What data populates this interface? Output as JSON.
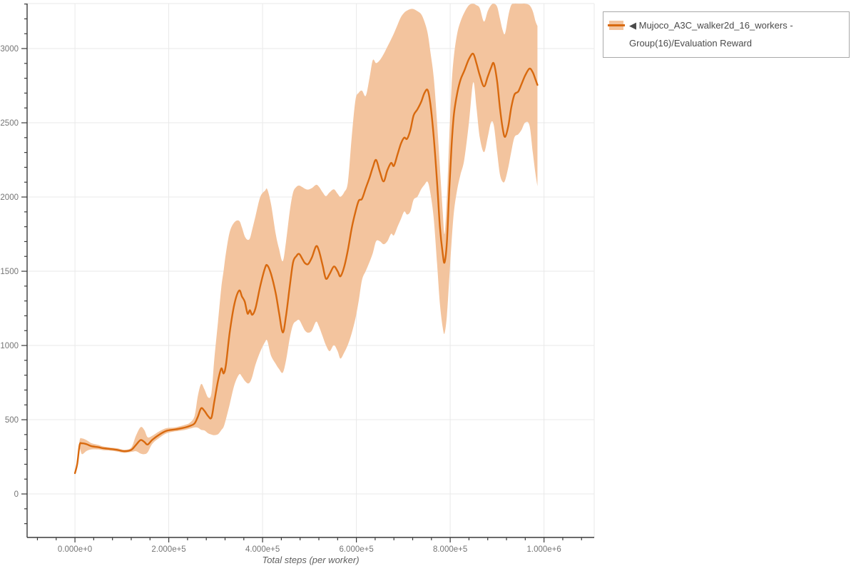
{
  "legend": {
    "marker": "◀",
    "label": "Mujoco_A3C_walker2d_16_workers - Group(16)/Evaluation Reward"
  },
  "colors": {
    "line": "#d8690e",
    "band": "#f3c49e",
    "grid": "#e9e9e9",
    "axis": "#3a3a3a",
    "tick_label": "#757575",
    "axis_title": "#616161",
    "legend_text": "#4a4a4a",
    "legend_border": "#a9a9a9",
    "background": "#ffffff"
  },
  "chart_data": {
    "type": "line",
    "title": "",
    "xlabel": "Total steps (per worker)",
    "ylabel": "",
    "grid": true,
    "legend_position": "outside-top-right",
    "xlim": [
      -102000,
      1107000
    ],
    "ylim": [
      -293,
      3303
    ],
    "x_minor_step": 40000,
    "y_minor_step": 100,
    "x_ticks": [
      {
        "v": 0,
        "label": "0.000e+0"
      },
      {
        "v": 200000,
        "label": "2.000e+5"
      },
      {
        "v": 400000,
        "label": "4.000e+5"
      },
      {
        "v": 600000,
        "label": "6.000e+5"
      },
      {
        "v": 800000,
        "label": "8.000e+5"
      },
      {
        "v": 1000000,
        "label": "1.000e+6"
      }
    ],
    "y_ticks": [
      {
        "v": 0,
        "label": "0"
      },
      {
        "v": 500,
        "label": "500"
      },
      {
        "v": 1000,
        "label": "1000"
      },
      {
        "v": 1500,
        "label": "1500"
      },
      {
        "v": 2000,
        "label": "2000"
      },
      {
        "v": 2500,
        "label": "2500"
      },
      {
        "v": 3000,
        "label": "3000"
      }
    ],
    "series": [
      {
        "name": "Mujoco_A3C_walker2d_16_workers - Group(16)/Evaluation Reward",
        "points_format": [
          "step",
          "mean",
          "band_low",
          "band_high"
        ],
        "points": [
          [
            0,
            140,
            140,
            140
          ],
          [
            5000,
            205,
            195,
            215
          ],
          [
            10000,
            330,
            300,
            360
          ],
          [
            15000,
            341,
            268,
            374
          ],
          [
            25000,
            335,
            290,
            362
          ],
          [
            35000,
            322,
            300,
            342
          ],
          [
            50000,
            315,
            300,
            330
          ],
          [
            60000,
            308,
            295,
            320
          ],
          [
            75000,
            303,
            292,
            313
          ],
          [
            90000,
            297,
            286,
            308
          ],
          [
            105000,
            288,
            277,
            298
          ],
          [
            120000,
            297,
            283,
            312
          ],
          [
            130000,
            330,
            288,
            392
          ],
          [
            140000,
            363,
            272,
            450
          ],
          [
            148000,
            350,
            268,
            430
          ],
          [
            155000,
            333,
            280,
            382
          ],
          [
            165000,
            365,
            338,
            392
          ],
          [
            180000,
            400,
            378,
            422
          ],
          [
            195000,
            425,
            408,
            443
          ],
          [
            210000,
            433,
            420,
            447
          ],
          [
            220000,
            438,
            424,
            453
          ],
          [
            235000,
            448,
            432,
            466
          ],
          [
            245000,
            458,
            440,
            480
          ],
          [
            255000,
            475,
            448,
            525
          ],
          [
            262000,
            520,
            446,
            660
          ],
          [
            269000,
            577,
            432,
            740
          ],
          [
            276000,
            560,
            428,
            705
          ],
          [
            284000,
            524,
            408,
            650
          ],
          [
            291000,
            514,
            400,
            680
          ],
          [
            297000,
            620,
            396,
            905
          ],
          [
            305000,
            762,
            402,
            1160
          ],
          [
            312000,
            845,
            430,
            1390
          ],
          [
            317000,
            812,
            452,
            1505
          ],
          [
            322000,
            872,
            505,
            1625
          ],
          [
            330000,
            1090,
            605,
            1765
          ],
          [
            340000,
            1280,
            735,
            1830
          ],
          [
            350000,
            1370,
            805,
            1840
          ],
          [
            356000,
            1330,
            790,
            1795
          ],
          [
            362000,
            1295,
            762,
            1735
          ],
          [
            368000,
            1215,
            745,
            1712
          ],
          [
            373000,
            1238,
            752,
            1722
          ],
          [
            378000,
            1207,
            790,
            1782
          ],
          [
            385000,
            1252,
            872,
            1872
          ],
          [
            395000,
            1400,
            958,
            2000
          ],
          [
            405000,
            1520,
            1022,
            2042
          ],
          [
            410000,
            1540,
            1032,
            2052
          ],
          [
            418000,
            1482,
            932,
            1952
          ],
          [
            428000,
            1352,
            876,
            1752
          ],
          [
            435000,
            1222,
            842,
            1652
          ],
          [
            443000,
            1088,
            817,
            1568
          ],
          [
            450000,
            1200,
            900,
            1700
          ],
          [
            458000,
            1400,
            1050,
            1905
          ],
          [
            465000,
            1560,
            1140,
            2030
          ],
          [
            472000,
            1602,
            1165,
            2068
          ],
          [
            478000,
            1617,
            1172,
            2077
          ],
          [
            485000,
            1582,
            1132,
            2066
          ],
          [
            490000,
            1556,
            1102,
            2056
          ],
          [
            497000,
            1548,
            1086,
            2050
          ],
          [
            505000,
            1592,
            1100,
            2060
          ],
          [
            514000,
            1668,
            1160,
            2082
          ],
          [
            520000,
            1640,
            1130,
            2070
          ],
          [
            528000,
            1540,
            1062,
            2032
          ],
          [
            535000,
            1450,
            1002,
            2006
          ],
          [
            543000,
            1482,
            962,
            2032
          ],
          [
            552000,
            1532,
            1002,
            2052
          ],
          [
            560000,
            1500,
            962,
            2022
          ],
          [
            566000,
            1466,
            912,
            2002
          ],
          [
            574000,
            1530,
            952,
            2032
          ],
          [
            582000,
            1645,
            1006,
            2102
          ],
          [
            590000,
            1790,
            1082,
            2402
          ],
          [
            598000,
            1900,
            1182,
            2652
          ],
          [
            605000,
            1975,
            1302,
            2702
          ],
          [
            612000,
            1988,
            1442,
            2716
          ],
          [
            620000,
            2060,
            1502,
            2682
          ],
          [
            628000,
            2130,
            1562,
            2802
          ],
          [
            635000,
            2200,
            1622,
            2922
          ],
          [
            642000,
            2250,
            1702,
            2902
          ],
          [
            650000,
            2170,
            1702,
            2922
          ],
          [
            658000,
            2105,
            1682,
            2962
          ],
          [
            666000,
            2180,
            1702,
            3012
          ],
          [
            674000,
            2230,
            1752,
            3062
          ],
          [
            680000,
            2210,
            1742,
            3102
          ],
          [
            688000,
            2290,
            1802,
            3162
          ],
          [
            695000,
            2360,
            1852,
            3212
          ],
          [
            702000,
            2400,
            1902,
            3242
          ],
          [
            708000,
            2392,
            1882,
            3256
          ],
          [
            715000,
            2450,
            1902,
            3266
          ],
          [
            722000,
            2550,
            1982,
            3266
          ],
          [
            730000,
            2590,
            2002,
            3252
          ],
          [
            738000,
            2640,
            2052,
            3232
          ],
          [
            745000,
            2700,
            2082,
            3182
          ],
          [
            752000,
            2720,
            2102,
            3102
          ],
          [
            758000,
            2620,
            2022,
            2972
          ],
          [
            765000,
            2400,
            1852,
            2802
          ],
          [
            772000,
            2100,
            1552,
            2502
          ],
          [
            778000,
            1800,
            1282,
            2202
          ],
          [
            784000,
            1620,
            1122,
            1902
          ],
          [
            788000,
            1560,
            1082,
            1752
          ],
          [
            793000,
            1700,
            1202,
            2002
          ],
          [
            798000,
            2050,
            1452,
            2402
          ],
          [
            803000,
            2350,
            1702,
            2752
          ],
          [
            808000,
            2560,
            1902,
            2952
          ],
          [
            815000,
            2700,
            2052,
            3102
          ],
          [
            822000,
            2790,
            2152,
            3182
          ],
          [
            830000,
            2850,
            2252,
            3242
          ],
          [
            840000,
            2930,
            2502,
            3292
          ],
          [
            849000,
            2965,
            2772,
            3302
          ],
          [
            856000,
            2900,
            2602,
            3292
          ],
          [
            863000,
            2820,
            2402,
            3272
          ],
          [
            872000,
            2745,
            2302,
            3182
          ],
          [
            880000,
            2810,
            2402,
            3252
          ],
          [
            887000,
            2870,
            2502,
            3292
          ],
          [
            893000,
            2900,
            2482,
            3302
          ],
          [
            900000,
            2780,
            2302,
            3282
          ],
          [
            906000,
            2600,
            2152,
            3202
          ],
          [
            912000,
            2460,
            2102,
            3122
          ],
          [
            917000,
            2405,
            2112,
            3102
          ],
          [
            924000,
            2480,
            2202,
            3222
          ],
          [
            930000,
            2600,
            2302,
            3292
          ],
          [
            937000,
            2690,
            2402,
            3302
          ],
          [
            945000,
            2710,
            2422,
            3302
          ],
          [
            952000,
            2760,
            2452,
            3302
          ],
          [
            960000,
            2820,
            2502,
            3302
          ],
          [
            969000,
            2865,
            2482,
            3292
          ],
          [
            976000,
            2840,
            2302,
            3252
          ],
          [
            982000,
            2790,
            2152,
            3182
          ],
          [
            986000,
            2755,
            2072,
            3152
          ]
        ]
      }
    ]
  }
}
